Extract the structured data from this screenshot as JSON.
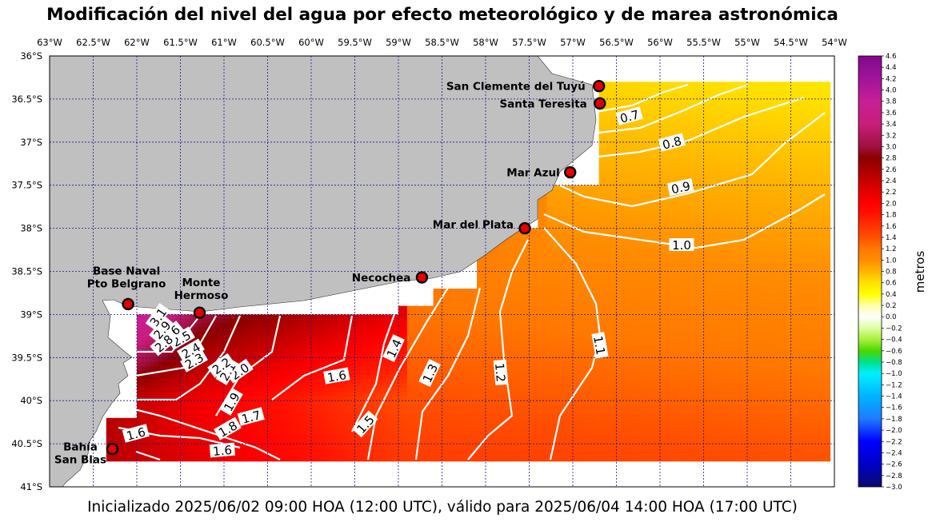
{
  "title": "Modificación del nivel del agua por efecto meteorológico y de marea astronómica",
  "footer": "Inicializado 2025/06/02 09:00 HOA (12:00 UTC), válido para 2025/06/04 14:00 HOA (17:00 UTC)",
  "x_ticks": [
    "63°W",
    "62.5°W",
    "62°W",
    "61.5°W",
    "61°W",
    "60.5°W",
    "60°W",
    "59.5°W",
    "59°W",
    "58.5°W",
    "58°W",
    "57.5°W",
    "57°W",
    "56.5°W",
    "56°W",
    "55.5°W",
    "55°W",
    "54.5°W",
    "54°W"
  ],
  "y_ticks": [
    "36°S",
    "36.5°S",
    "37°S",
    "37.5°S",
    "38°S",
    "38.5°S",
    "39°S",
    "39.5°S",
    "40°S",
    "40.5°S",
    "41°S"
  ],
  "cities": [
    {
      "name": "San Clemente del Tuyú",
      "lon": -56.7,
      "lat": -36.35
    },
    {
      "name": "Santa Teresita",
      "lon": -56.69,
      "lat": -36.55
    },
    {
      "name": "Mar Azul",
      "lon": -57.03,
      "lat": -37.35
    },
    {
      "name": "Mar del Plata",
      "lon": -57.55,
      "lat": -38.0
    },
    {
      "name": "Necochea",
      "lon": -58.73,
      "lat": -38.57
    },
    {
      "name": "Monte Hermoso",
      "lon": -61.28,
      "lat": -38.98
    },
    {
      "name": "Base Naval Pto Belgrano",
      "lon": -62.1,
      "lat": -38.88
    },
    {
      "name": "Bahía San Blas",
      "lon": -62.28,
      "lat": -40.56
    }
  ],
  "contour_labels": [
    "0.7",
    "0.8",
    "0.9",
    "1.0",
    "1.1",
    "1.2",
    "1.3",
    "1.4",
    "1.5",
    "1.6",
    "1.6",
    "1.6",
    "1.7",
    "1.8",
    "1.9",
    "2.0",
    "2.1",
    "2.2",
    "2.3",
    "2.4",
    "2.5",
    "2.6",
    "2.8",
    "2.9",
    "3.1"
  ],
  "colorbar": {
    "label": "metros",
    "min": -3.0,
    "max": 4.6,
    "tick_labels": [
      "4.6",
      "4.4",
      "4.2",
      "4.0",
      "3.8",
      "3.6",
      "3.4",
      "3.2",
      "3.0",
      "2.8",
      "2.6",
      "2.4",
      "2.2",
      "2.0",
      "1.8",
      "1.6",
      "1.4",
      "1.2",
      "1.0",
      "0.8",
      "0.6",
      "0.4",
      "0.2",
      "0.0",
      "−0.2",
      "−0.4",
      "−0.6",
      "−0.8",
      "−1.0",
      "−1.2",
      "−1.4",
      "−1.6",
      "−1.8",
      "−2.0",
      "−2.2",
      "−2.4",
      "−2.6",
      "−2.8",
      "−3.0"
    ],
    "colors": {
      "-3.0": "#0a0a6e",
      "-2.6": "#0000c8",
      "-2.2": "#0000ff",
      "-1.8": "#1e7bff",
      "-1.4": "#00b4ff",
      "-1.0": "#00f0ff",
      "-0.8": "#00e08c",
      "-0.6": "#4cd600",
      "-0.4": "#a8f03c",
      "-0.2": "#dcffa0",
      "0.0": "#ffffff",
      "0.2": "#ffffa8",
      "0.4": "#ffff00",
      "0.6": "#ffe100",
      "0.8": "#ffb400",
      "1.0": "#ff8c00",
      "1.2": "#ff7800",
      "1.4": "#ff5000",
      "1.6": "#ff3200",
      "1.8": "#ff1400",
      "2.0": "#ff0000",
      "2.2": "#e60000",
      "2.4": "#c80000",
      "2.6": "#aa0000",
      "2.8": "#8b0000",
      "3.0": "#a01040",
      "3.4": "#c81e7a",
      "3.8": "#c81e96",
      "4.2": "#a0149a",
      "4.6": "#82088c"
    }
  },
  "style": {
    "land": "#c0c0c0",
    "grid": "#1a1a8c",
    "marker_fill": "#e60000"
  }
}
